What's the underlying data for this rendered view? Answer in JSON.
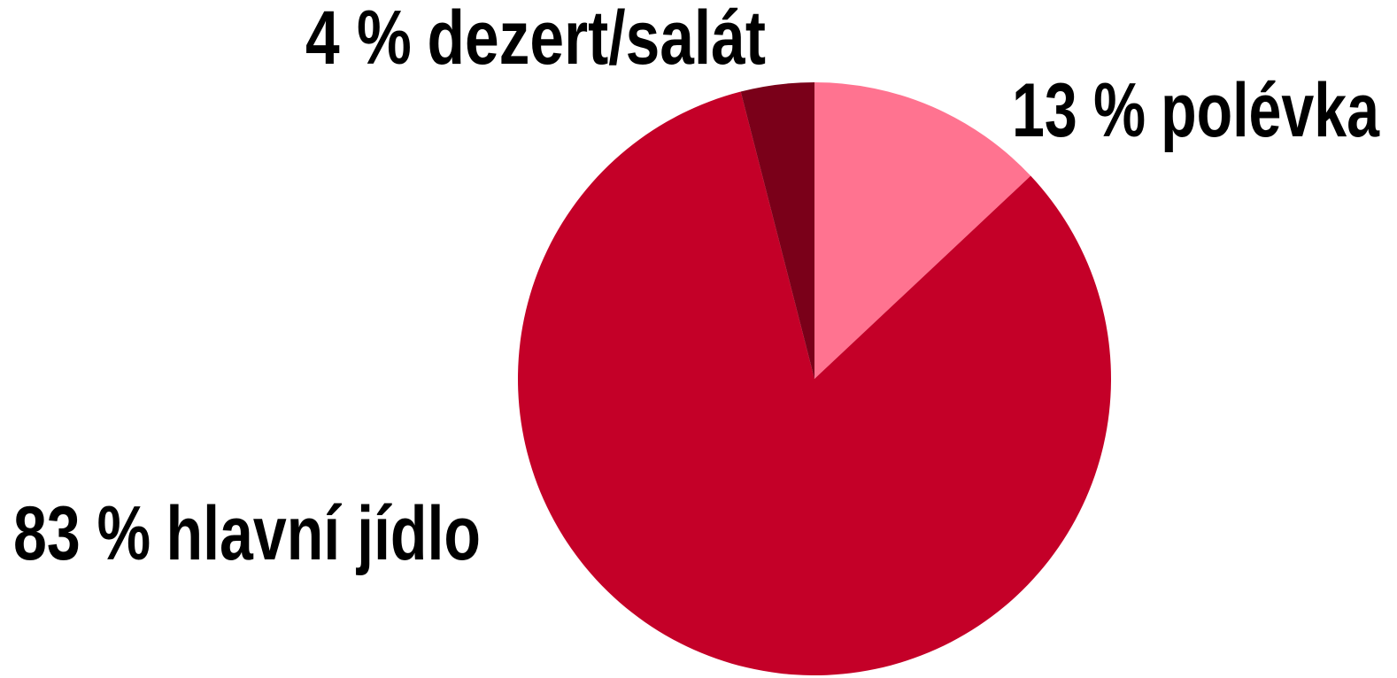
{
  "chart_data": {
    "type": "pie",
    "categories": [
      "polévka",
      "hlavní jídlo",
      "dezert/salát"
    ],
    "values": [
      13,
      83,
      4
    ],
    "value_labels": [
      "13 %",
      "83 %",
      "4 %"
    ],
    "colors": [
      "#ff7390",
      "#c40028",
      "#7a0019"
    ]
  }
}
